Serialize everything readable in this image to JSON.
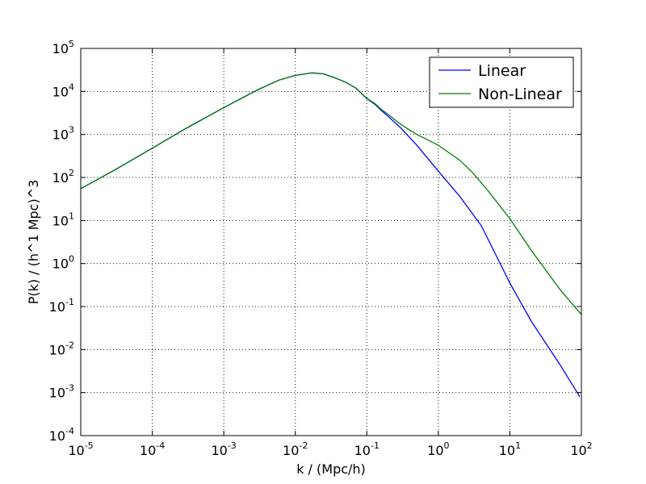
{
  "chart_data": {
    "type": "line",
    "xscale": "log",
    "yscale": "log",
    "xlim": [
      1e-05,
      100
    ],
    "ylim": [
      0.0001,
      100000.0
    ],
    "xlabel": "k / (Mpc/h)",
    "ylabel": "P(k) / (h^1 Mpc)^3",
    "grid": true,
    "legend_position": "top-right",
    "x_ticks": [
      {
        "base": "10",
        "exp": "-5",
        "value": 1e-05
      },
      {
        "base": "10",
        "exp": "-4",
        "value": 0.0001
      },
      {
        "base": "10",
        "exp": "-3",
        "value": 0.001
      },
      {
        "base": "10",
        "exp": "-2",
        "value": 0.01
      },
      {
        "base": "10",
        "exp": "-1",
        "value": 0.1
      },
      {
        "base": "10",
        "exp": "0",
        "value": 1
      },
      {
        "base": "10",
        "exp": "1",
        "value": 10
      },
      {
        "base": "10",
        "exp": "2",
        "value": 100
      }
    ],
    "y_ticks": [
      {
        "base": "10",
        "exp": "-4",
        "value": 0.0001
      },
      {
        "base": "10",
        "exp": "-3",
        "value": 0.001
      },
      {
        "base": "10",
        "exp": "-2",
        "value": 0.01
      },
      {
        "base": "10",
        "exp": "-1",
        "value": 0.1
      },
      {
        "base": "10",
        "exp": "0",
        "value": 1
      },
      {
        "base": "10",
        "exp": "1",
        "value": 10
      },
      {
        "base": "10",
        "exp": "2",
        "value": 100
      },
      {
        "base": "10",
        "exp": "3",
        "value": 1000
      },
      {
        "base": "10",
        "exp": "4",
        "value": 10000
      },
      {
        "base": "10",
        "exp": "5",
        "value": 100000
      }
    ],
    "series": [
      {
        "name": "Linear",
        "color": "#0000ff",
        "points": [
          [
            1e-05,
            55
          ],
          [
            3e-05,
            150
          ],
          [
            0.0001,
            480
          ],
          [
            0.0003,
            1400
          ],
          [
            0.001,
            4200
          ],
          [
            0.003,
            11000
          ],
          [
            0.006,
            18500
          ],
          [
            0.01,
            23500
          ],
          [
            0.017,
            27000
          ],
          [
            0.025,
            25500
          ],
          [
            0.035,
            21000
          ],
          [
            0.05,
            16500
          ],
          [
            0.07,
            12000
          ],
          [
            0.1,
            6800
          ],
          [
            0.13,
            5000
          ],
          [
            0.16,
            3600
          ],
          [
            0.2,
            2600
          ],
          [
            0.3,
            1400
          ],
          [
            0.5,
            560
          ],
          [
            1,
            140
          ],
          [
            2,
            36
          ],
          [
            4,
            7.5
          ],
          [
            10,
            0.35
          ],
          [
            20,
            0.045
          ],
          [
            50,
            0.0045
          ],
          [
            95,
            0.0008
          ]
        ]
      },
      {
        "name": "Non-Linear",
        "color": "#008000",
        "points": [
          [
            1e-05,
            55
          ],
          [
            3e-05,
            150
          ],
          [
            0.0001,
            480
          ],
          [
            0.0003,
            1400
          ],
          [
            0.001,
            4200
          ],
          [
            0.003,
            11000
          ],
          [
            0.006,
            18500
          ],
          [
            0.01,
            23500
          ],
          [
            0.017,
            27000
          ],
          [
            0.025,
            25500
          ],
          [
            0.035,
            21000
          ],
          [
            0.05,
            16500
          ],
          [
            0.07,
            12000
          ],
          [
            0.1,
            6900
          ],
          [
            0.13,
            5200
          ],
          [
            0.16,
            3800
          ],
          [
            0.2,
            2900
          ],
          [
            0.3,
            1700
          ],
          [
            0.5,
            1000
          ],
          [
            1,
            560
          ],
          [
            2,
            250
          ],
          [
            3,
            130
          ],
          [
            5,
            48
          ],
          [
            10,
            11
          ],
          [
            20,
            2
          ],
          [
            50,
            0.25
          ],
          [
            100,
            0.065
          ]
        ]
      }
    ]
  }
}
